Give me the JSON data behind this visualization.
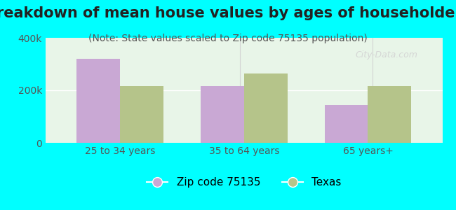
{
  "title": "Breakdown of mean house values by ages of householders",
  "subtitle": "(Note: State values scaled to Zip code 75135 population)",
  "categories": [
    "25 to 34 years",
    "35 to 64 years",
    "65 years+"
  ],
  "zip_values": [
    320000,
    215000,
    145000
  ],
  "state_values": [
    215000,
    265000,
    215000
  ],
  "zip_color": "#c9a8d4",
  "state_color": "#b5c48a",
  "background_color": "#00ffff",
  "plot_bg_color": "#e8f5e8",
  "ylim": [
    0,
    400000
  ],
  "ytick_labels": [
    "0",
    "200k",
    "400k"
  ],
  "ytick_vals": [
    0,
    200000,
    400000
  ],
  "bar_width": 0.35,
  "legend_labels": [
    "Zip code 75135",
    "Texas"
  ],
  "title_fontsize": 15,
  "subtitle_fontsize": 10,
  "tick_fontsize": 10,
  "legend_fontsize": 11
}
